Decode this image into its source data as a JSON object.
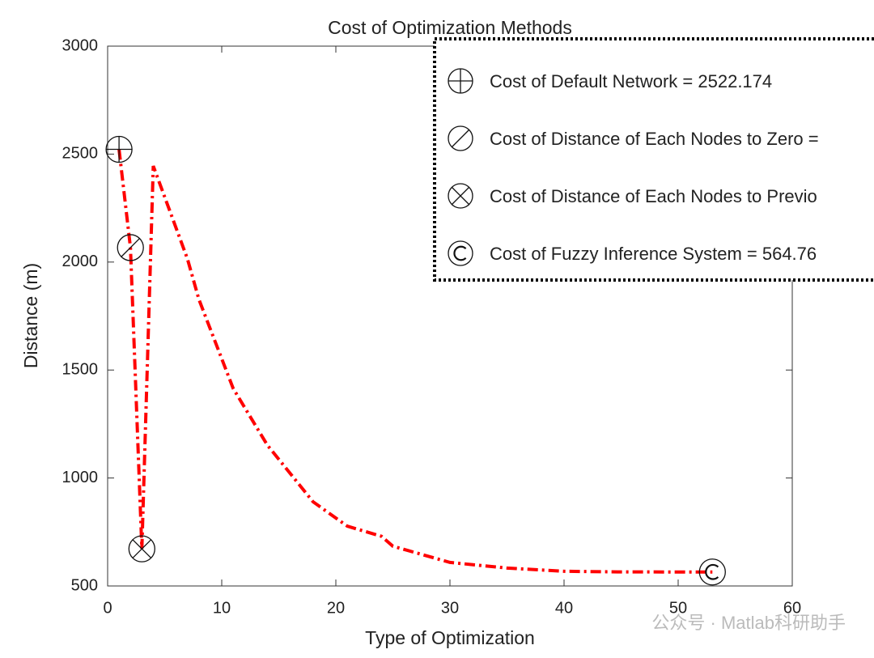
{
  "chart_data": {
    "type": "line",
    "title": "Cost of Optimization Methods",
    "xlabel": "Type of Optimization",
    "ylabel": "Distance (m)",
    "xlim": [
      0,
      60
    ],
    "xticks": [
      0,
      10,
      20,
      30,
      40,
      50,
      60
    ],
    "ylim": [
      500,
      3000
    ],
    "yticks": [
      500,
      1000,
      1500,
      2000,
      2500,
      3000
    ],
    "series": [
      {
        "color": "#ff0000",
        "x": [
          1,
          2,
          3,
          4,
          7,
          8,
          11,
          14,
          18,
          21,
          24,
          25,
          30,
          35,
          40,
          45,
          53
        ],
        "values": [
          2522.174,
          2067,
          672,
          2445,
          2014,
          1827,
          1415,
          1152,
          890,
          777,
          730,
          684,
          609,
          583,
          568,
          565,
          564.76
        ]
      }
    ],
    "markers": [
      {
        "name": "Cost of Default Network = 2522.174",
        "symbol": "circle-plus",
        "x": 1,
        "y": 2522.174
      },
      {
        "name": "Cost of Distance of Each Nodes to Zero =",
        "symbol": "circle-slash",
        "x": 2,
        "y": 2067
      },
      {
        "name": "Cost of Distance of Each Nodes to Previo",
        "symbol": "circle-x",
        "x": 3,
        "y": 672
      },
      {
        "name": "Cost of Fuzzy Inference System = 564.76",
        "symbol": "circle-c",
        "x": 53,
        "y": 564.76
      }
    ],
    "watermark": "公众号 · Matlab科研助手"
  }
}
